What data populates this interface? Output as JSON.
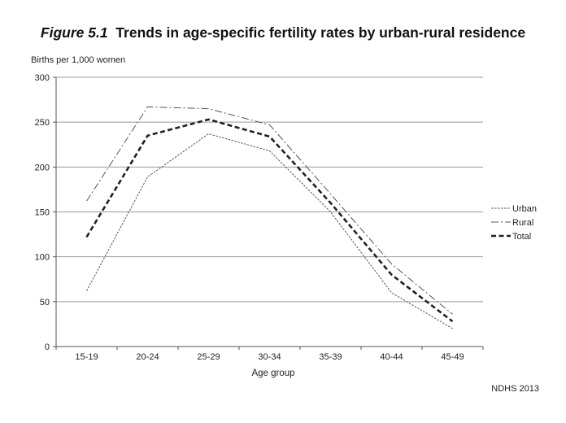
{
  "figure": {
    "label": "Figure 5.1",
    "title_text": "Trends in age-specific fertility rates by urban-rural residence",
    "source": "NDHS 2013"
  },
  "chart_data": {
    "type": "line",
    "title": "Figure 5.1 Trends in age-specific fertility rates by urban-rural residence",
    "ylabel": "Births per 1,000 women",
    "xlabel": "Age group",
    "categories": [
      "15-19",
      "20-24",
      "25-29",
      "30-34",
      "35-39",
      "40-44",
      "45-49"
    ],
    "ylim": [
      0,
      300
    ],
    "yticks": [
      0,
      50,
      100,
      150,
      200,
      250,
      300
    ],
    "grid": true,
    "legend_position": "right",
    "series": [
      {
        "name": "Urban",
        "values": [
          62,
          189,
          237,
          218,
          150,
          60,
          20
        ],
        "style": "dotted-thin",
        "color": "#555555"
      },
      {
        "name": "Rural",
        "values": [
          162,
          267,
          265,
          247,
          170,
          92,
          36
        ],
        "style": "dashdot-thin",
        "color": "#555555"
      },
      {
        "name": "Total",
        "values": [
          122,
          235,
          253,
          234,
          160,
          80,
          28
        ],
        "style": "dashed-thick",
        "color": "#222222"
      }
    ]
  }
}
